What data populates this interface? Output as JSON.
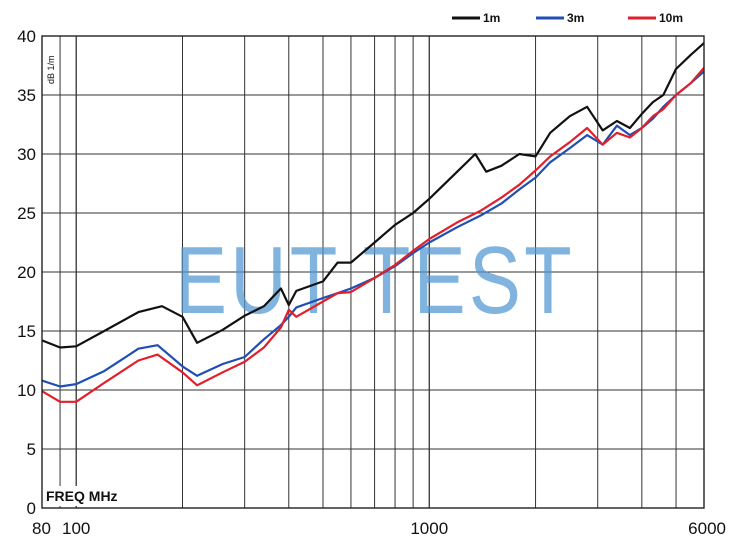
{
  "chart_data": {
    "type": "line",
    "xscale": "log",
    "xlim": [
      80,
      6000
    ],
    "ylim": [
      0,
      40
    ],
    "grid": true,
    "legend_position": "top-right",
    "x_axis_title": "FREQ MHz",
    "y_unit": "dB 1/m",
    "watermark": "EUT TEST",
    "y_ticks": [
      "0",
      "5",
      "10",
      "15",
      "20",
      "25",
      "30",
      "35",
      "40"
    ],
    "x_tick_labels": [
      {
        "value": 80,
        "label": "80"
      },
      {
        "value": 100,
        "label": "100"
      },
      {
        "value": 1000,
        "label": "1000"
      },
      {
        "value": 6000,
        "label": "6000"
      }
    ],
    "series": [
      {
        "name": "1m",
        "color": "#111111",
        "x": [
          80,
          90,
          100,
          120,
          150,
          175,
          200,
          220,
          260,
          300,
          340,
          380,
          400,
          420,
          500,
          550,
          600,
          700,
          800,
          900,
          1000,
          1200,
          1350,
          1450,
          1600,
          1800,
          2000,
          2200,
          2500,
          2800,
          3100,
          3400,
          3700,
          4000,
          4300,
          4600,
          5000,
          5500,
          6000
        ],
        "y": [
          14.2,
          13.6,
          13.7,
          15.0,
          16.6,
          17.1,
          16.2,
          14.0,
          15.1,
          16.3,
          17.1,
          18.6,
          17.2,
          18.4,
          19.2,
          20.8,
          20.8,
          22.5,
          24.0,
          25.0,
          26.2,
          28.5,
          30.0,
          28.5,
          29.0,
          30.0,
          29.8,
          31.8,
          33.2,
          34.0,
          32.0,
          32.8,
          32.2,
          33.4,
          34.4,
          35.0,
          37.2,
          38.4,
          39.4
        ]
      },
      {
        "name": "3m",
        "color": "#1f4fb4",
        "x": [
          80,
          90,
          100,
          120,
          150,
          170,
          200,
          220,
          260,
          300,
          340,
          380,
          400,
          420,
          500,
          550,
          600,
          700,
          800,
          900,
          1000,
          1200,
          1400,
          1600,
          1800,
          2000,
          2200,
          2500,
          2800,
          3100,
          3400,
          3700,
          4000,
          4300,
          4600,
          5000,
          5500,
          6000
        ],
        "y": [
          10.8,
          10.3,
          10.5,
          11.6,
          13.5,
          13.8,
          12.0,
          11.2,
          12.2,
          12.8,
          14.3,
          15.5,
          16.2,
          17.0,
          17.8,
          18.2,
          18.6,
          19.5,
          20.5,
          21.6,
          22.5,
          23.8,
          24.8,
          25.8,
          27.0,
          28.0,
          29.3,
          30.5,
          31.6,
          30.8,
          32.4,
          31.6,
          32.2,
          33.0,
          34.0,
          35.0,
          36.0,
          37.0
        ]
      },
      {
        "name": "10m",
        "color": "#e0202a",
        "x": [
          80,
          90,
          100,
          120,
          150,
          170,
          200,
          220,
          260,
          300,
          340,
          380,
          400,
          420,
          500,
          550,
          600,
          700,
          800,
          900,
          1000,
          1200,
          1400,
          1600,
          1800,
          2000,
          2200,
          2500,
          2800,
          3100,
          3400,
          3700,
          4000,
          4300,
          4600,
          5000,
          5500,
          6000
        ],
        "y": [
          9.9,
          9.0,
          9.0,
          10.6,
          12.5,
          13.0,
          11.5,
          10.4,
          11.5,
          12.4,
          13.6,
          15.3,
          16.8,
          16.2,
          17.5,
          18.2,
          18.3,
          19.5,
          20.6,
          21.8,
          22.8,
          24.2,
          25.2,
          26.3,
          27.4,
          28.6,
          29.8,
          31.0,
          32.2,
          30.8,
          31.8,
          31.4,
          32.2,
          33.2,
          33.8,
          35.0,
          36.0,
          37.3
        ]
      }
    ]
  }
}
